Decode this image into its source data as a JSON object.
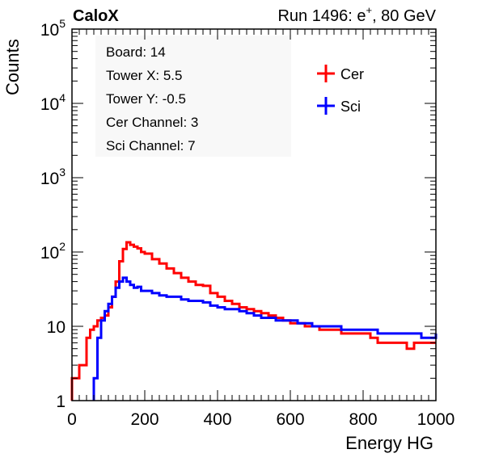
{
  "header": {
    "left_title": "CaloX",
    "right_title_prefix": "Run 1496: e",
    "right_title_sup": "+",
    "right_title_suffix": ", 80 GeV"
  },
  "info_box": {
    "lines": [
      "Board: 14",
      "Tower X: 5.5",
      "Tower Y: -0.5",
      "Cer Channel: 3",
      "Sci Channel: 7"
    ]
  },
  "legend": {
    "entries": [
      {
        "label": "Cer",
        "color": "#ff0000"
      },
      {
        "label": "Sci",
        "color": "#0000ff"
      }
    ]
  },
  "chart_data": {
    "type": "line",
    "style": "step histogram",
    "title": "",
    "xlabel": "Energy HG",
    "ylabel": "Counts",
    "xlim": [
      0,
      1000
    ],
    "ylim": [
      1,
      100000
    ],
    "yscale": "log",
    "xticks": [
      "0",
      "200",
      "400",
      "600",
      "800",
      "1000"
    ],
    "yticks": [
      {
        "base": "1",
        "exp": ""
      },
      {
        "base": "10",
        "exp": ""
      },
      {
        "base": "10",
        "exp": "2"
      },
      {
        "base": "10",
        "exp": "3"
      },
      {
        "base": "10",
        "exp": "4"
      },
      {
        "base": "10",
        "exp": "5"
      }
    ],
    "grid": false,
    "legend_position": "top-right",
    "x": [
      0,
      20,
      40,
      50,
      60,
      70,
      80,
      90,
      100,
      110,
      120,
      130,
      140,
      150,
      160,
      170,
      180,
      190,
      200,
      220,
      240,
      260,
      280,
      300,
      320,
      340,
      360,
      380,
      400,
      420,
      440,
      460,
      480,
      500,
      520,
      540,
      560,
      580,
      600,
      620,
      640,
      660,
      680,
      700,
      720,
      740,
      760,
      780,
      800,
      820,
      840,
      860,
      880,
      900,
      920,
      940,
      960,
      980,
      1000
    ],
    "series": [
      {
        "name": "Cer",
        "color": "#ff0000",
        "values": [
          2,
          3,
          7,
          9,
          10,
          12,
          13,
          14,
          18,
          25,
          40,
          75,
          110,
          135,
          125,
          118,
          112,
          100,
          95,
          80,
          70,
          60,
          52,
          45,
          40,
          36,
          35,
          28,
          25,
          22,
          20,
          18,
          17,
          16,
          15,
          14,
          13,
          12,
          11,
          11,
          10,
          10,
          9,
          9,
          9,
          8,
          8,
          8,
          8,
          7,
          6,
          6,
          6,
          6,
          5,
          6,
          6,
          6,
          6
        ]
      },
      {
        "name": "Sci",
        "color": "#0000ff",
        "values": [
          null,
          null,
          null,
          null,
          2,
          7,
          12,
          16,
          20,
          25,
          33,
          40,
          45,
          40,
          36,
          33,
          34,
          30,
          30,
          28,
          26,
          25,
          25,
          23,
          22,
          22,
          21,
          19,
          18,
          17,
          17,
          16,
          15,
          14,
          13,
          13,
          12,
          12,
          12,
          11,
          11,
          10,
          10,
          10,
          10,
          9,
          9,
          9,
          9,
          9,
          8,
          8,
          8,
          8,
          8,
          8,
          7,
          7,
          8
        ]
      }
    ]
  }
}
